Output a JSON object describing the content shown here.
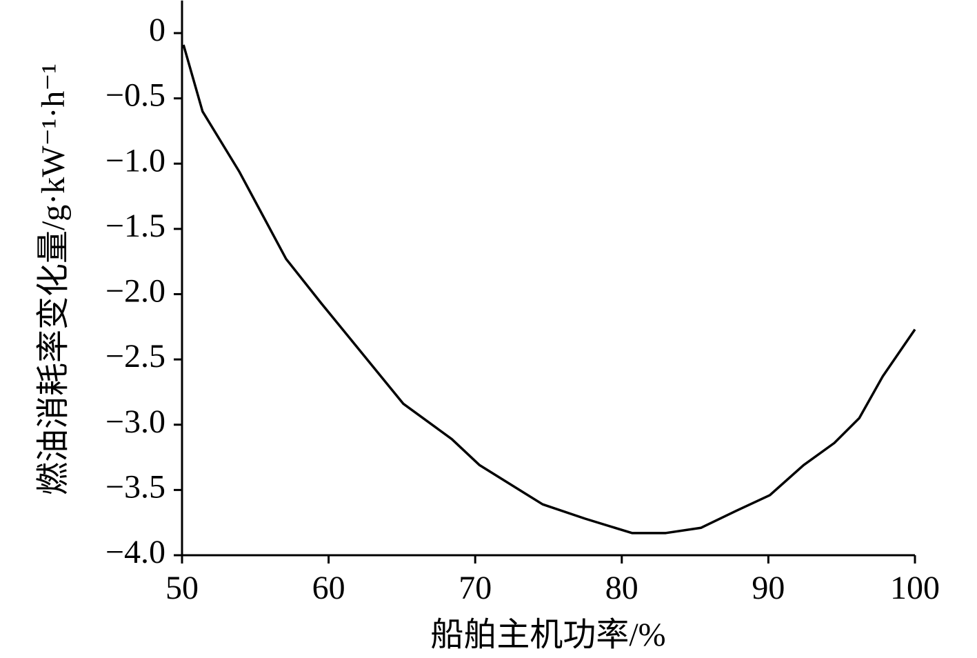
{
  "chart_data": {
    "type": "line",
    "x_label": "船舶主机功率/%",
    "y_label": "燃油消耗率变化量/g·kW⁻¹·h⁻¹",
    "x": [
      50.1,
      51.4,
      53.9,
      57.1,
      59.5,
      65.1,
      68.4,
      70.3,
      74.6,
      77.5,
      80.7,
      83.0,
      85.4,
      87.8,
      90.1,
      92.4,
      94.5,
      96.2,
      97.8,
      100.0
    ],
    "series": [
      {
        "color": "#000000",
        "values": [
          -0.09,
          -0.6,
          -1.06,
          -1.73,
          -2.07,
          -2.84,
          -3.11,
          -3.31,
          -3.61,
          -3.72,
          -3.83,
          -3.83,
          -3.79,
          -3.66,
          -3.54,
          -3.31,
          -3.14,
          -2.95,
          -2.63,
          -2.27
        ]
      }
    ],
    "xlim": [
      50,
      100
    ],
    "ylim": [
      -4.0,
      0.25
    ],
    "xticks": [
      50,
      60,
      70,
      80,
      90,
      100
    ],
    "yticks": [
      {
        "value": -4.0,
        "label": "−4.0"
      },
      {
        "value": -3.5,
        "label": "−3.5"
      },
      {
        "value": -3.0,
        "label": "−3.0"
      },
      {
        "value": -2.5,
        "label": "−2.5"
      },
      {
        "value": -2.0,
        "label": "−2.0"
      },
      {
        "value": -1.5,
        "label": "−1.5"
      },
      {
        "value": -1.0,
        "label": "−1.0"
      },
      {
        "value": -0.5,
        "label": "−0.5"
      },
      0
    ],
    "grid": false
  }
}
